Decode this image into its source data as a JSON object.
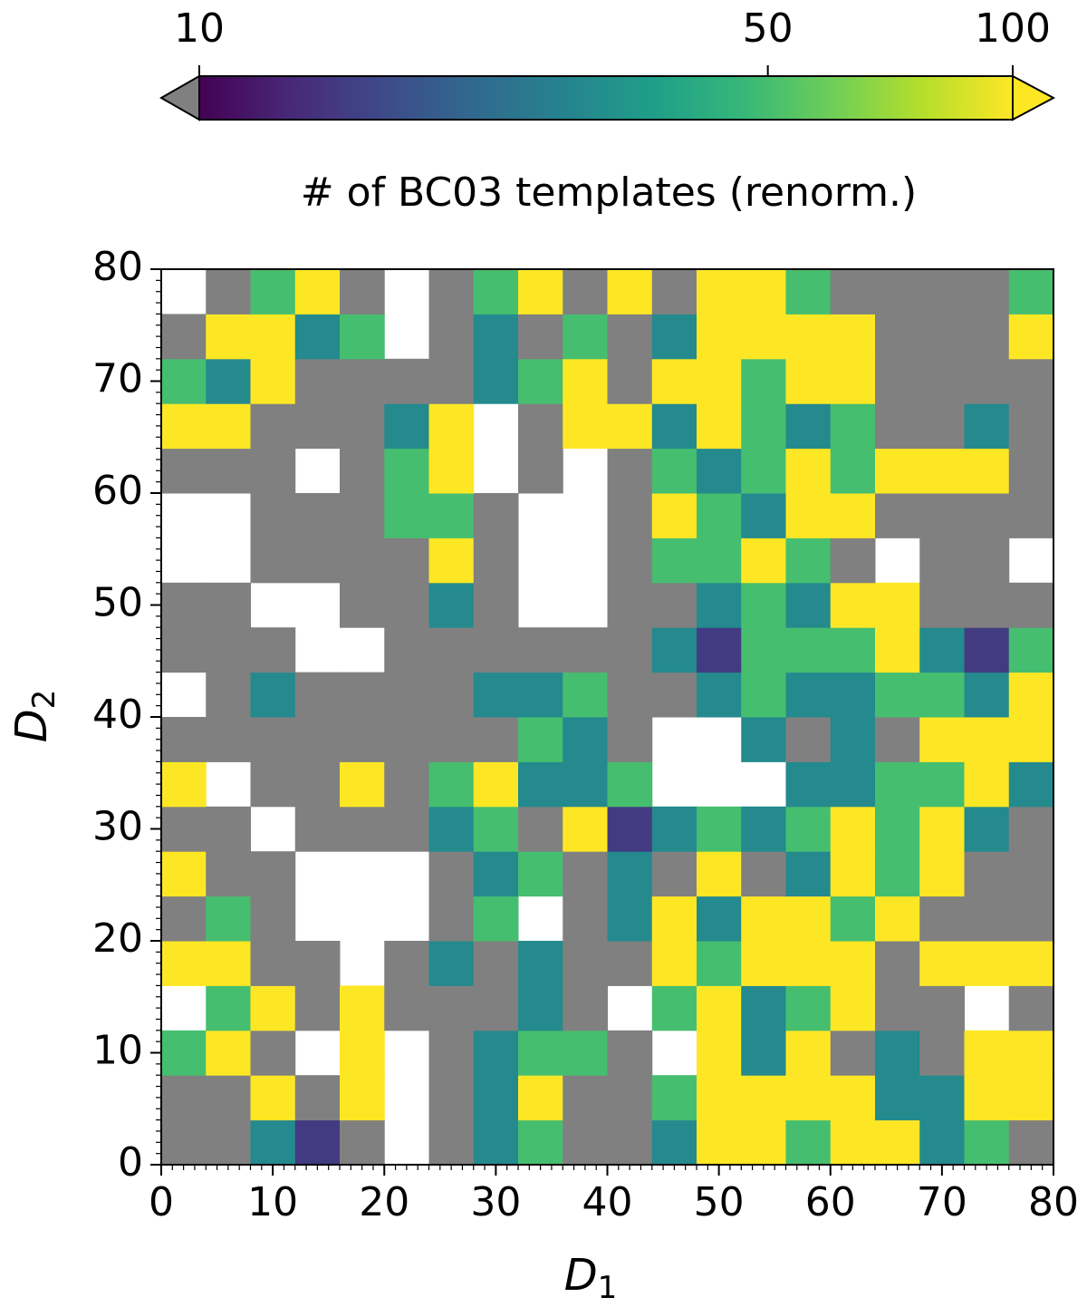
{
  "chart_data": {
    "type": "heatmap",
    "x_label": "D",
    "x_label_sub": "1",
    "y_label": "D",
    "y_label_sub": "2",
    "colorbar_label": "# of BC03 templates (renorm.)",
    "clim": [
      10,
      100
    ],
    "colorbar_scale": "log",
    "colorbar_ticks": [
      10,
      50,
      100
    ],
    "colormap": [
      "#440154",
      "#482878",
      "#3e4989",
      "#31688e",
      "#26828e",
      "#1f9e89",
      "#35b779",
      "#6ece58",
      "#b5de2b",
      "#fde725"
    ],
    "under_color": "#808080",
    "over_color": "#fde725",
    "xlim": [
      0,
      80
    ],
    "ylim": [
      0,
      80
    ],
    "xticks": [
      0,
      10,
      20,
      30,
      40,
      50,
      60,
      70,
      80
    ],
    "yticks": [
      0,
      10,
      20,
      30,
      40,
      50,
      60,
      70,
      80
    ],
    "minor_tick_step": 1,
    "x_bins": [
      0,
      4,
      8,
      12,
      16,
      20,
      24,
      28,
      32,
      36,
      40,
      44,
      48,
      52,
      56,
      60,
      64,
      68,
      72,
      76,
      80
    ],
    "y_bins": [
      0,
      4,
      8,
      12,
      16,
      20,
      24,
      28,
      32,
      36,
      40,
      44,
      48,
      52,
      56,
      60,
      64,
      68,
      72,
      76,
      80
    ],
    "z": [
      [
        5,
        5,
        30,
        15,
        5,
        null,
        5,
        30,
        50,
        5,
        5,
        30,
        100,
        100,
        50,
        100,
        100,
        30,
        50,
        5
      ],
      [
        5,
        5,
        100,
        5,
        100,
        null,
        5,
        30,
        100,
        5,
        5,
        50,
        100,
        100,
        100,
        100,
        30,
        30,
        100,
        100
      ],
      [
        50,
        100,
        5,
        null,
        100,
        null,
        5,
        30,
        50,
        50,
        5,
        null,
        100,
        30,
        100,
        5,
        30,
        5,
        100,
        100
      ],
      [
        null,
        50,
        100,
        5,
        100,
        5,
        5,
        5,
        30,
        5,
        null,
        50,
        100,
        30,
        50,
        100,
        5,
        5,
        null,
        5
      ],
      [
        100,
        100,
        5,
        5,
        null,
        5,
        30,
        5,
        30,
        5,
        5,
        100,
        50,
        100,
        100,
        100,
        5,
        100,
        100,
        100
      ],
      [
        5,
        50,
        5,
        null,
        null,
        null,
        5,
        50,
        null,
        5,
        30,
        100,
        30,
        100,
        100,
        50,
        100,
        5,
        5,
        5
      ],
      [
        100,
        5,
        5,
        null,
        null,
        null,
        5,
        30,
        50,
        5,
        30,
        5,
        100,
        5,
        30,
        100,
        50,
        100,
        5,
        5
      ],
      [
        5,
        5,
        null,
        5,
        5,
        5,
        30,
        50,
        5,
        100,
        15,
        30,
        50,
        30,
        50,
        100,
        50,
        100,
        30,
        5
      ],
      [
        100,
        null,
        5,
        5,
        100,
        5,
        50,
        100,
        30,
        30,
        50,
        null,
        null,
        null,
        30,
        30,
        50,
        50,
        100,
        30
      ],
      [
        5,
        5,
        5,
        5,
        5,
        5,
        5,
        5,
        50,
        30,
        5,
        null,
        null,
        30,
        5,
        30,
        5,
        100,
        100,
        100
      ],
      [
        null,
        5,
        30,
        5,
        5,
        5,
        5,
        30,
        30,
        50,
        5,
        5,
        30,
        50,
        30,
        30,
        50,
        50,
        30,
        100
      ],
      [
        5,
        5,
        5,
        null,
        null,
        5,
        5,
        5,
        5,
        5,
        5,
        30,
        15,
        50,
        50,
        50,
        100,
        30,
        15,
        50
      ],
      [
        5,
        5,
        null,
        null,
        5,
        5,
        30,
        5,
        null,
        null,
        5,
        5,
        30,
        50,
        30,
        100,
        100,
        5,
        5,
        5
      ],
      [
        null,
        null,
        5,
        5,
        5,
        5,
        100,
        5,
        null,
        null,
        5,
        50,
        50,
        100,
        50,
        5,
        null,
        5,
        5,
        null
      ],
      [
        null,
        null,
        5,
        5,
        5,
        50,
        50,
        5,
        null,
        null,
        5,
        100,
        50,
        30,
        100,
        100,
        5,
        5,
        5,
        5
      ],
      [
        5,
        5,
        5,
        null,
        5,
        50,
        100,
        null,
        5,
        null,
        5,
        50,
        30,
        50,
        100,
        50,
        100,
        100,
        100,
        5
      ],
      [
        100,
        100,
        5,
        5,
        5,
        30,
        100,
        null,
        5,
        100,
        100,
        30,
        100,
        50,
        30,
        50,
        5,
        5,
        30,
        5
      ],
      [
        50,
        30,
        100,
        5,
        5,
        5,
        5,
        30,
        50,
        100,
        5,
        100,
        100,
        50,
        100,
        100,
        5,
        5,
        5,
        5
      ],
      [
        5,
        100,
        100,
        30,
        50,
        null,
        5,
        30,
        5,
        50,
        5,
        30,
        100,
        100,
        100,
        100,
        5,
        5,
        5,
        100
      ],
      [
        null,
        5,
        50,
        100,
        5,
        null,
        5,
        50,
        100,
        5,
        100,
        5,
        100,
        100,
        50,
        5,
        5,
        5,
        5,
        50
      ]
    ]
  }
}
